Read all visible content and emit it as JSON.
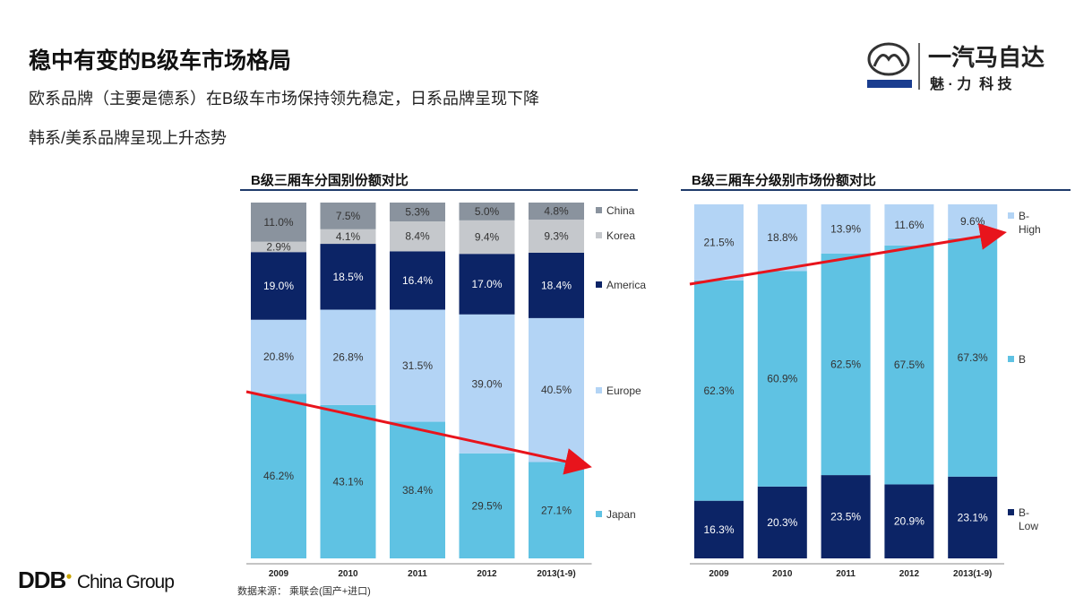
{
  "header": {
    "title": "稳中有变的B级车市场格局",
    "subtitle1": "欧系品牌（主要是德系）在B级车市场保持领先稳定，日系品牌呈现下降",
    "subtitle2": "韩系/美系品牌呈现上升态势"
  },
  "logo": {
    "brand": "mazda",
    "cn_name": "一汽马自达",
    "slogan": "魅 · 力  科 技"
  },
  "footer": {
    "company": "DDB",
    "company_sub": "China Group",
    "source": "数据来源： 乘联会(国产+进口)"
  },
  "chart_data": [
    {
      "type": "bar",
      "stacked": true,
      "title": "B级三厢车分国别份额对比",
      "categories": [
        "2009",
        "2010",
        "2011",
        "2012",
        "2013(1-9)"
      ],
      "legend_position": "right",
      "unit": "%",
      "series": [
        {
          "name": "Japan",
          "color": "#5fc2e3",
          "values": [
            46.2,
            43.1,
            38.4,
            29.5,
            27.1
          ]
        },
        {
          "name": "Europe",
          "color": "#b3d4f5",
          "values": [
            20.8,
            26.8,
            31.5,
            39.0,
            40.5
          ]
        },
        {
          "name": "America",
          "color": "#0c2466",
          "values": [
            19.0,
            18.5,
            16.4,
            17.0,
            18.4
          ]
        },
        {
          "name": "Korea",
          "color": "#c5c8cc",
          "values": [
            2.9,
            4.1,
            8.4,
            9.4,
            9.3
          ]
        },
        {
          "name": "China",
          "color": "#8a939e",
          "values": [
            11.0,
            7.5,
            5.3,
            5.0,
            4.8
          ]
        }
      ],
      "annotation": "red downward trend arrow across Japan share"
    },
    {
      "type": "bar",
      "stacked": true,
      "title": "B级三厢车分级别市场份额对比",
      "categories": [
        "2009",
        "2010",
        "2011",
        "2012",
        "2013(1-9)"
      ],
      "legend_position": "right",
      "unit": "%",
      "series": [
        {
          "name": "B-Low",
          "color": "#0c2466",
          "values": [
            16.3,
            20.3,
            23.5,
            20.9,
            23.1
          ]
        },
        {
          "name": "B",
          "color": "#5fc2e3",
          "values": [
            62.3,
            60.9,
            62.5,
            67.5,
            67.3
          ]
        },
        {
          "name": "B-High",
          "color": "#b3d4f5",
          "values": [
            21.5,
            18.8,
            13.9,
            11.6,
            9.6
          ]
        }
      ],
      "annotation": "red upward trend arrow across B share"
    }
  ]
}
